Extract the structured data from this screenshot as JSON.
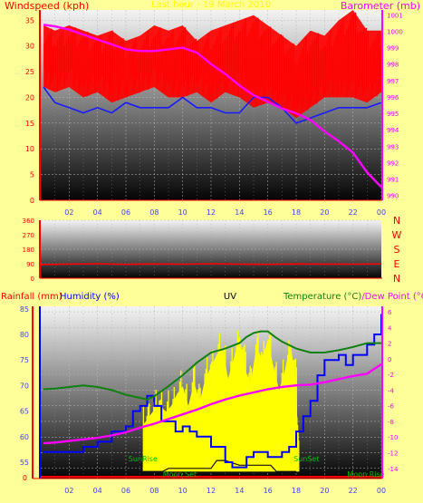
{
  "colors": {
    "background": "#ffff99",
    "windspeed": "#ff0000",
    "windgust": "#ff0000",
    "windavg": "#1a1aff",
    "barometer": "#ff00ff",
    "direction": "#ff0000",
    "rainfall": "#ff0000",
    "humidity": "#0000ff",
    "uv": "#ffff00",
    "temperature": "#108010",
    "dewpoint": "#ff00ff",
    "solar": "#101010",
    "left_axis": "#ff0000",
    "right_axis": "#ff00ff",
    "tick_text": "#4040ff",
    "temp_label": "#108010",
    "sun_label": "#00c000"
  },
  "chart_data": [
    {
      "id": "wind_baro",
      "type": "line",
      "title": "Last hour - 19 March 2010",
      "ylabel_left": "Windspeed (kph)",
      "ylabel_right": "Barometer (mb)",
      "x_ticks": [
        "02",
        "04",
        "06",
        "08",
        "10",
        "12",
        "14",
        "16",
        "18",
        "20",
        "22",
        "00"
      ],
      "ylim_left": [
        0,
        37
      ],
      "y_ticks_left": [
        0,
        5,
        10,
        15,
        20,
        25,
        30,
        35
      ],
      "ylim_right": [
        989.7,
        1001.3
      ],
      "y_ticks_right": [
        990,
        991,
        992,
        993,
        994,
        995,
        996,
        997,
        998,
        999,
        1000,
        1001
      ],
      "grid": true,
      "series": [
        {
          "name": "Gust",
          "style": "band",
          "x": [
            0.2,
            1,
            2,
            3,
            4,
            5,
            6,
            7,
            8,
            9,
            10,
            11,
            12,
            13,
            14,
            15,
            16,
            17,
            18,
            19,
            20,
            21,
            22,
            23,
            24
          ],
          "low": [
            22,
            21,
            22,
            20,
            21,
            19,
            20,
            21,
            22,
            20,
            20,
            21,
            19,
            21,
            20,
            18,
            19,
            18,
            16,
            18,
            20,
            20,
            20,
            19,
            21
          ],
          "high": [
            34,
            33,
            34,
            33,
            32,
            33,
            31,
            32,
            34,
            33,
            34,
            31,
            33,
            34,
            35,
            36,
            34,
            32,
            30,
            33,
            32,
            35,
            37,
            33,
            33
          ]
        },
        {
          "name": "Average",
          "x": [
            0.2,
            1,
            2,
            3,
            4,
            5,
            6,
            7,
            8,
            9,
            10,
            11,
            12,
            13,
            14,
            15,
            16,
            17,
            18,
            19,
            20,
            21,
            22,
            23,
            24
          ],
          "values": [
            22,
            19,
            18,
            17,
            18,
            17,
            19,
            18,
            18,
            18,
            20,
            18,
            18,
            17,
            17,
            20,
            20,
            18,
            15,
            16,
            17,
            18,
            18,
            18,
            19
          ]
        },
        {
          "name": "Barometer",
          "axis": "right",
          "x": [
            0.2,
            1,
            2,
            3,
            4,
            5,
            6,
            7,
            8,
            9,
            10,
            11,
            12,
            13,
            14,
            15,
            16,
            17,
            18,
            19,
            20,
            21,
            22,
            23,
            24
          ],
          "values": [
            1000.4,
            1000.3,
            1000.1,
            999.8,
            999.5,
            999.2,
            998.9,
            998.8,
            998.8,
            998.9,
            999.0,
            998.7,
            998.0,
            997.4,
            996.7,
            996.1,
            995.7,
            995.3,
            995.0,
            994.6,
            993.9,
            993.3,
            992.6,
            991.4,
            990.5
          ]
        }
      ]
    },
    {
      "id": "wind_dir",
      "type": "line",
      "x_ticks": [],
      "ylim": [
        0,
        360
      ],
      "y_ticks": [
        0,
        90,
        180,
        270,
        360
      ],
      "right_labels": [
        "N",
        "W",
        "S",
        "E",
        "N"
      ],
      "grid": true,
      "series": [
        {
          "name": "Direction",
          "x": [
            0,
            2,
            4,
            6,
            8,
            10,
            12,
            14,
            16,
            18,
            20,
            22,
            24
          ],
          "values": [
            85,
            88,
            90,
            86,
            89,
            87,
            90,
            88,
            86,
            89,
            88,
            87,
            89
          ]
        }
      ]
    },
    {
      "id": "temp_hum",
      "type": "line",
      "title": "UV",
      "ylabel_rain": "Rainfall (mm)",
      "ylabel_humidity": "Humidity (%)",
      "ylabel_right": "Temperature (°C)/Dew Point (°C)",
      "x_ticks": [
        "02",
        "04",
        "06",
        "08",
        "10",
        "12",
        "14",
        "16",
        "18",
        "20",
        "22",
        "00"
      ],
      "ylim_humidity": [
        51.8,
        85.5
      ],
      "y_ticks_humidity": [
        55,
        60,
        65,
        70,
        75,
        80,
        85
      ],
      "ylim_temp": [
        -15.3,
        6.7
      ],
      "y_ticks_temp": [
        -14,
        -12,
        -10,
        -8,
        -6,
        -4,
        -2,
        0,
        2,
        4,
        6
      ],
      "rain_ticks": [
        "0"
      ],
      "annotations": {
        "sunrise": "SunRise",
        "sunset": "SunSet",
        "moonset": "Moon Set",
        "moonrise": "Moon Rise"
      },
      "events": {
        "sunrise": 7.2,
        "sunset": 18.2,
        "moonset": 8.6,
        "moonrise": 21.6
      },
      "grid": true,
      "series": [
        {
          "name": "UV",
          "style": "band",
          "x": [
            7.2,
            7.6,
            8.0,
            8.4,
            8.8,
            9.2,
            9.6,
            10.0,
            10.4,
            10.8,
            11.2,
            11.6,
            12.0,
            12.4,
            12.8,
            13.2,
            13.6,
            14.0,
            14.4,
            14.8,
            15.2,
            15.6,
            16.0,
            16.4,
            16.8,
            17.2,
            17.6,
            18.0,
            18.2
          ],
          "low": [
            -14.4,
            -14.4,
            -14.4,
            -14.4,
            -14.4,
            -14.4,
            -14.4,
            -14.4,
            -14.4,
            -14.4,
            -14.4,
            -14.4,
            -14.4,
            -14.4,
            -14.4,
            -14.4,
            -14.4,
            -14.4,
            -14.4,
            -14.4,
            -14.4,
            -14.4,
            -14.4,
            -14.4,
            -14.4,
            -14.4,
            -14.4,
            -14.4,
            -14.4
          ],
          "high": [
            -8.5,
            -7.5,
            -6.5,
            -5.8,
            -6.8,
            -6.0,
            -4.5,
            -3.5,
            -6.0,
            -3.0,
            -5.5,
            -2.5,
            -1.0,
            0.5,
            1.5,
            -2.5,
            0.0,
            3.0,
            -1.5,
            -3.0,
            1.5,
            0.0,
            2.5,
            -1.0,
            -4.0,
            -1.5,
            2.0,
            -3.5,
            -14.4
          ]
        },
        {
          "name": "Solar",
          "x": [
            7.2,
            8.6,
            9.0,
            10.0,
            12.0,
            12.4,
            13.0,
            14.0,
            15.0,
            16.2,
            16.6,
            18.0
          ],
          "values": [
            -14.4,
            -14.4,
            -14.0,
            -14.0,
            -14.0,
            -13.0,
            -13.0,
            -13.6,
            -13.6,
            -13.6,
            -14.4,
            -14.4
          ]
        },
        {
          "name": "Humidity",
          "axis": "humidity",
          "x": [
            0.2,
            1,
            2,
            3,
            4,
            5,
            6,
            6.5,
            7,
            7.5,
            8,
            8.5,
            9,
            9.5,
            10,
            10.5,
            11,
            11.5,
            12,
            12.5,
            13,
            13.5,
            14,
            14.5,
            15,
            15.5,
            16,
            16.5,
            17,
            17.5,
            18,
            18.5,
            19,
            19.5,
            20,
            20.5,
            21,
            21.5,
            22,
            22.5,
            23,
            23.5,
            24
          ],
          "values": [
            57,
            57,
            57,
            58,
            59,
            61,
            62,
            65,
            66,
            68,
            66,
            63,
            63,
            61,
            62,
            61,
            60,
            60,
            58,
            58,
            55,
            54,
            54,
            56,
            57,
            57,
            56,
            56,
            57,
            58,
            61,
            64,
            67,
            72,
            75,
            75,
            76,
            74,
            76,
            76,
            78,
            80,
            84
          ]
        },
        {
          "name": "Temperature",
          "x": [
            0.2,
            1,
            2,
            3,
            4,
            5,
            6,
            7,
            7.5,
            8,
            9,
            10,
            11,
            12,
            13,
            14,
            14.5,
            15,
            15.5,
            16,
            16.5,
            17,
            18,
            19,
            20,
            21,
            22,
            23,
            24
          ],
          "values": [
            -3.9,
            -3.8,
            -3.6,
            -3.4,
            -3.6,
            -4.0,
            -4.6,
            -5.0,
            -5.2,
            -4.8,
            -3.5,
            -2.1,
            -0.5,
            0.8,
            1.3,
            2.0,
            2.8,
            3.3,
            3.5,
            3.5,
            2.8,
            2.2,
            1.3,
            0.8,
            0.8,
            1.1,
            1.5,
            2.0,
            2.0
          ]
        },
        {
          "name": "Dew Point",
          "x": [
            0.2,
            1,
            2,
            3,
            4,
            5,
            6,
            7,
            8,
            9,
            10,
            11,
            12,
            13,
            14,
            15,
            16,
            17,
            18,
            19,
            20,
            21,
            22,
            23,
            24
          ],
          "values": [
            -10.8,
            -10.7,
            -10.5,
            -10.3,
            -10.1,
            -9.8,
            -9.4,
            -8.8,
            -8.3,
            -7.7,
            -7.1,
            -6.5,
            -5.8,
            -5.2,
            -4.7,
            -4.3,
            -3.9,
            -3.6,
            -3.4,
            -3.3,
            -3.0,
            -2.6,
            -2.2,
            -1.9,
            -0.7
          ]
        }
      ]
    }
  ]
}
